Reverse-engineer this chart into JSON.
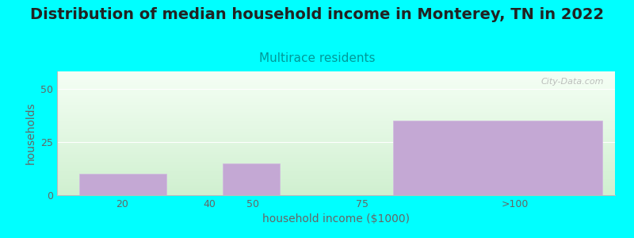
{
  "title": "Distribution of median household income in Monterey, TN in 2022",
  "subtitle": "Multirace residents",
  "xlabel": "household income ($1000)",
  "ylabel": "households",
  "background_color": "#00FFFF",
  "plot_bg_top": "#F5FFF5",
  "plot_bg_bottom": "#D0F0D0",
  "bar_color": "#C4A8D4",
  "categories": [
    "20",
    "40",
    "50",
    "75",
    ">100"
  ],
  "values": [
    10,
    0,
    15,
    0,
    35
  ],
  "ylim": [
    0,
    58
  ],
  "yticks": [
    0,
    25,
    50
  ],
  "title_fontsize": 14,
  "subtitle_fontsize": 11,
  "subtitle_color": "#009999",
  "title_color": "#222222",
  "axis_label_color": "#666666",
  "tick_color": "#666666",
  "watermark": "City-Data.com",
  "figsize": [
    8.0,
    3.0
  ],
  "dpi": 100,
  "left_edges": [
    10,
    30,
    43,
    56,
    82
  ],
  "bar_widths_plot": [
    20,
    13,
    13,
    26,
    48
  ],
  "tick_positions": [
    20,
    40,
    50,
    75,
    110
  ],
  "xlim": [
    5,
    133
  ]
}
